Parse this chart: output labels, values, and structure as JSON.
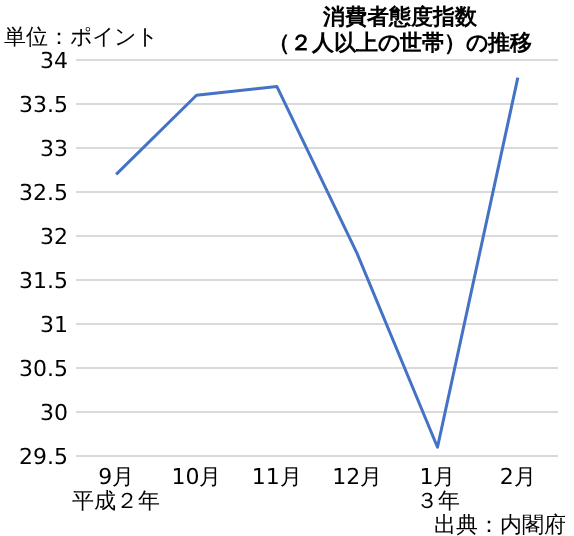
{
  "chart_data": {
    "type": "line",
    "title": "消費者態度指数（２人以上の世帯）の推移",
    "ylabel": "単位：ポイント",
    "categories": [
      "9月",
      "10月",
      "11月",
      "12月",
      "1月",
      "2月"
    ],
    "series": [
      {
        "color": "#4472c4",
        "values": [
          32.7,
          33.6,
          33.7,
          31.8,
          29.6,
          33.8
        ]
      }
    ],
    "ylim": [
      29.5,
      34
    ],
    "yticks": [
      29.5,
      30,
      30.5,
      31,
      31.5,
      32,
      32.5,
      33,
      33.5,
      34
    ],
    "grid": "y",
    "marker": "none",
    "annotations": [
      "平成２年",
      "３年",
      "出典：内閣府"
    ]
  }
}
